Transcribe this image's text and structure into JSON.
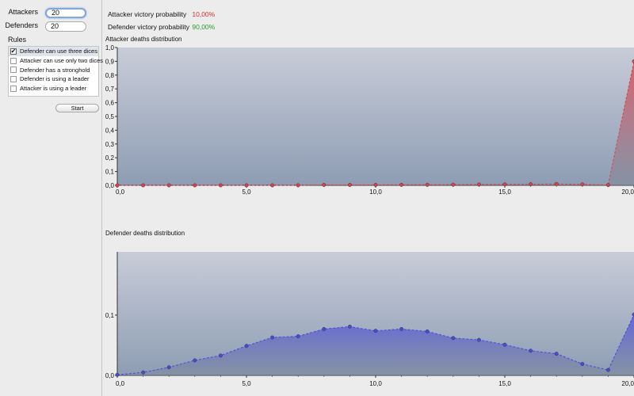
{
  "sidebar": {
    "attackers_label": "Attackers",
    "attackers_value": "20",
    "defenders_label": "Defenders",
    "defenders_value": "20",
    "rules_label": "Rules",
    "rules": [
      {
        "label": "Defender can use three dices",
        "checked": true,
        "selected": true
      },
      {
        "label": "Attacker can use only two dices",
        "checked": false,
        "selected": false
      },
      {
        "label": "Defender has a stronghold",
        "checked": false,
        "selected": false
      },
      {
        "label": "Defender is using a leader",
        "checked": false,
        "selected": false
      },
      {
        "label": "Attacker is using a leader",
        "checked": false,
        "selected": false
      }
    ],
    "start_label": "Start"
  },
  "results": {
    "attacker_victory_label": "Attacker victory probability",
    "attacker_victory_value": "10,00%",
    "attacker_victory_color": "#e03030",
    "defender_victory_label": "Defender victory probability",
    "defender_victory_value": "90,00%",
    "defender_victory_color": "#2aa02a"
  },
  "chart_data": [
    {
      "type": "area",
      "title": "Attacker deaths distribution",
      "color": "#e0404a",
      "xlim": [
        0,
        20
      ],
      "ylim": [
        0,
        1.0
      ],
      "xticks": [
        "0,0",
        "5,0",
        "10,0",
        "15,0",
        "20,0"
      ],
      "yticks": [
        "0,0",
        "0,1",
        "0,2",
        "0,3",
        "0,4",
        "0,5",
        "0,6",
        "0,7",
        "0,8",
        "0,9",
        "1,0"
      ],
      "x": [
        0,
        1,
        2,
        3,
        4,
        5,
        6,
        7,
        8,
        9,
        10,
        11,
        12,
        13,
        14,
        15,
        16,
        17,
        18,
        19,
        20
      ],
      "values": [
        0,
        0,
        0,
        0,
        0,
        0,
        0,
        0,
        0.003,
        0.003,
        0.003,
        0.004,
        0.004,
        0.005,
        0.006,
        0.007,
        0.008,
        0.01,
        0.007,
        0.002,
        0.9
      ]
    },
    {
      "type": "area",
      "title": "Defender deaths distribution",
      "color": "#4a4ae0",
      "xlim": [
        0,
        20
      ],
      "ylim": [
        0,
        0.205
      ],
      "xticks": [
        "0,0",
        "5,0",
        "10,0",
        "15,0",
        "20,0"
      ],
      "yticks": [
        "0,0",
        "0,1"
      ],
      "x": [
        0,
        1,
        2,
        3,
        4,
        5,
        6,
        7,
        8,
        9,
        10,
        11,
        12,
        13,
        14,
        15,
        16,
        17,
        18,
        19,
        20
      ],
      "values": [
        0.001,
        0.005,
        0.0135,
        0.025,
        0.033,
        0.049,
        0.063,
        0.065,
        0.077,
        0.081,
        0.074,
        0.077,
        0.073,
        0.062,
        0.059,
        0.051,
        0.041,
        0.036,
        0.019,
        0.009,
        0.101
      ]
    }
  ]
}
